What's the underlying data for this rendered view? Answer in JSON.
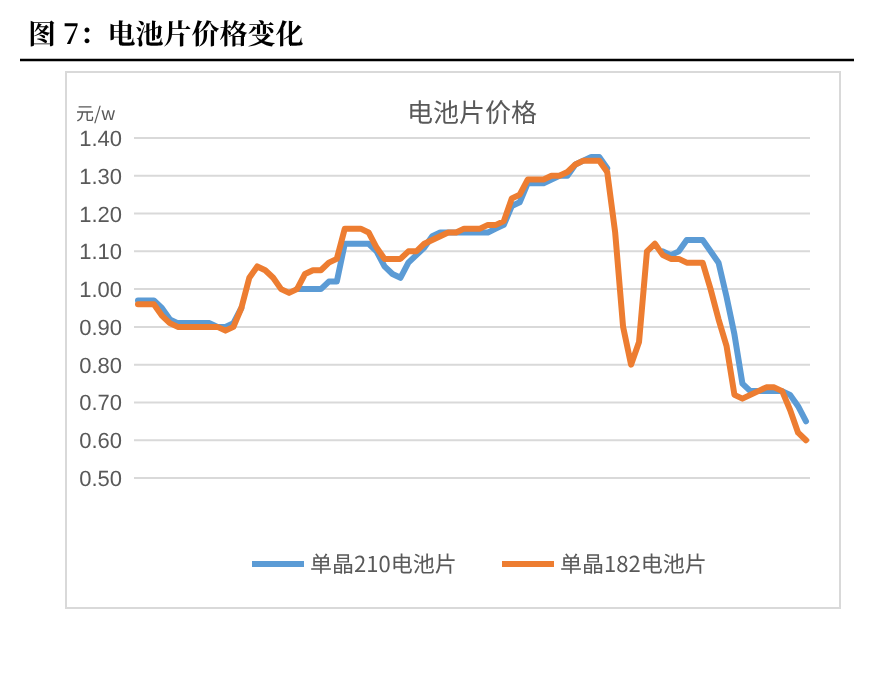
{
  "chart_data": {
    "type": "line",
    "title": "图 7：电池片价格变化",
    "subtitle": "电池片价格",
    "ylabel": "元/w",
    "categories": [
      null,
      null,
      null,
      null,
      null,
      null,
      null,
      null,
      null,
      null,
      null,
      null,
      null,
      null,
      null,
      null,
      null,
      null,
      null,
      null,
      null,
      null,
      null,
      null,
      null,
      null,
      null,
      null,
      null,
      null,
      null,
      null,
      null,
      null,
      null,
      null,
      null,
      null,
      null,
      null,
      null,
      null,
      null,
      null,
      null,
      null,
      null,
      null,
      null,
      null,
      null,
      null,
      null,
      null,
      null,
      null,
      null,
      null,
      null,
      null,
      null,
      null,
      null,
      null,
      null,
      null,
      null,
      null,
      null,
      null,
      null,
      null,
      null,
      null,
      null,
      null,
      null,
      null,
      null,
      null,
      null,
      null,
      null,
      null,
      null
    ],
    "series": [
      {
        "name": "单晶210电池片",
        "color": "#5b9bd5",
        "values": [
          0.97,
          0.97,
          0.97,
          0.95,
          0.92,
          0.91,
          0.91,
          0.91,
          0.91,
          0.91,
          0.9,
          0.9,
          0.91,
          0.95,
          null,
          null,
          null,
          null,
          null,
          null,
          1.0,
          1.0,
          1.0,
          1.0,
          1.02,
          1.02,
          1.12,
          1.12,
          1.12,
          1.12,
          1.1,
          1.06,
          1.04,
          1.03,
          1.07,
          1.09,
          1.11,
          1.14,
          1.15,
          1.15,
          1.15,
          1.15,
          1.15,
          1.15,
          1.15,
          1.16,
          1.17,
          1.22,
          1.23,
          1.28,
          1.28,
          1.28,
          1.29,
          1.3,
          1.3,
          1.33,
          1.34,
          1.35,
          1.35,
          1.32,
          null,
          null,
          null,
          null,
          null,
          null,
          1.1,
          1.09,
          1.1,
          1.13,
          1.13,
          1.13,
          1.1,
          1.07,
          0.98,
          0.88,
          0.75,
          0.73,
          0.73,
          0.73,
          0.73,
          0.73,
          0.72,
          0.69,
          0.65
        ]
      },
      {
        "name": "单晶182电池片",
        "color": "#ed7d31",
        "values": [
          0.96,
          0.96,
          0.96,
          0.93,
          0.91,
          0.9,
          0.9,
          0.9,
          0.9,
          0.9,
          0.9,
          0.89,
          0.9,
          0.95,
          1.03,
          1.06,
          1.05,
          1.03,
          1.0,
          0.99,
          1.0,
          1.04,
          1.05,
          1.05,
          1.07,
          1.08,
          1.16,
          1.16,
          1.16,
          1.15,
          1.11,
          1.08,
          1.08,
          1.08,
          1.1,
          1.1,
          1.12,
          1.13,
          1.14,
          1.15,
          1.15,
          1.16,
          1.16,
          1.16,
          1.17,
          1.17,
          1.18,
          1.24,
          1.25,
          1.29,
          1.29,
          1.29,
          1.3,
          1.3,
          1.31,
          1.33,
          1.34,
          1.34,
          1.34,
          1.31,
          1.15,
          0.9,
          0.8,
          0.86,
          1.1,
          1.12,
          1.09,
          1.08,
          1.08,
          1.07,
          1.07,
          1.07,
          1.0,
          0.92,
          0.85,
          0.72,
          0.71,
          0.72,
          0.73,
          0.74,
          0.74,
          0.73,
          0.68,
          0.62,
          0.6
        ]
      }
    ],
    "ylim": [
      0.5,
      1.4
    ],
    "yticks": [
      {
        "value": 0.5,
        "label": "0.50"
      },
      {
        "value": 0.6,
        "label": "0.60"
      },
      {
        "value": 0.7,
        "label": "0.70"
      },
      {
        "value": 0.8,
        "label": "0.80"
      },
      {
        "value": 0.9,
        "label": "0.90"
      },
      {
        "value": 1.0,
        "label": "1.00"
      },
      {
        "value": 1.1,
        "label": "1.10"
      },
      {
        "value": 1.2,
        "label": "1.20"
      },
      {
        "value": 1.3,
        "label": "1.30"
      },
      {
        "value": 1.4,
        "label": "1.40"
      }
    ],
    "grid": "y",
    "legend": "bottom"
  }
}
